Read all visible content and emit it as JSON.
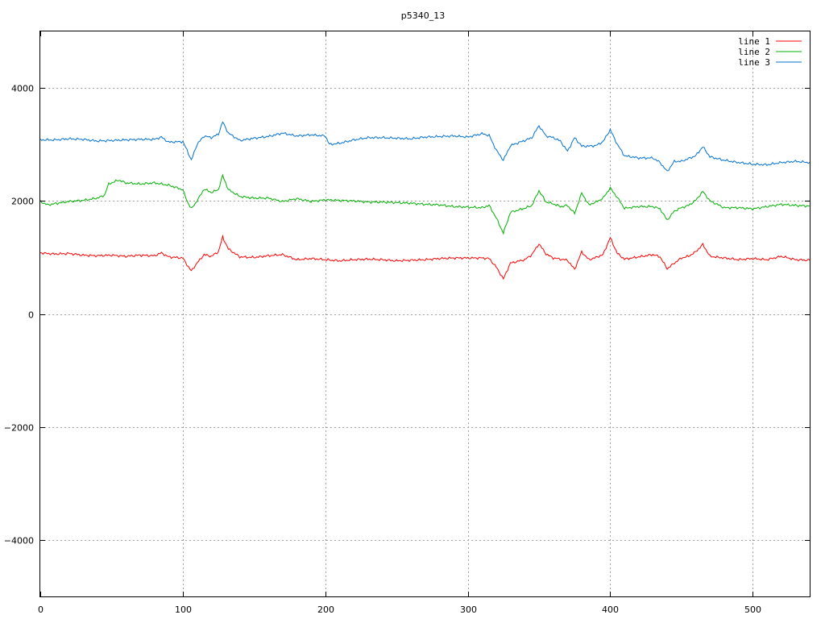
{
  "chart_data": {
    "type": "line",
    "title": "p5340_13",
    "xlabel": "",
    "ylabel": "",
    "xlim": [
      0,
      540
    ],
    "ylim": [
      -5000,
      5000
    ],
    "x_ticks": [
      0,
      100,
      200,
      300,
      400,
      500
    ],
    "y_ticks": [
      -4000,
      -2000,
      0,
      2000,
      4000
    ],
    "grid": true,
    "legend_position": "top-right",
    "series": [
      {
        "name": "line 1",
        "color": "#ff0000",
        "points": [
          [
            0,
            1080
          ],
          [
            10,
            1060
          ],
          [
            20,
            1070
          ],
          [
            30,
            1040
          ],
          [
            40,
            1030
          ],
          [
            50,
            1040
          ],
          [
            60,
            1020
          ],
          [
            70,
            1040
          ],
          [
            80,
            1030
          ],
          [
            85,
            1080
          ],
          [
            90,
            1010
          ],
          [
            100,
            990
          ],
          [
            103,
            870
          ],
          [
            106,
            760
          ],
          [
            110,
            900
          ],
          [
            115,
            1050
          ],
          [
            120,
            1020
          ],
          [
            125,
            1100
          ],
          [
            128,
            1360
          ],
          [
            132,
            1150
          ],
          [
            140,
            1010
          ],
          [
            150,
            1000
          ],
          [
            160,
            1030
          ],
          [
            170,
            1050
          ],
          [
            180,
            960
          ],
          [
            190,
            980
          ],
          [
            200,
            960
          ],
          [
            210,
            940
          ],
          [
            220,
            960
          ],
          [
            230,
            970
          ],
          [
            240,
            960
          ],
          [
            250,
            940
          ],
          [
            260,
            950
          ],
          [
            270,
            960
          ],
          [
            280,
            980
          ],
          [
            290,
            990
          ],
          [
            300,
            990
          ],
          [
            310,
            990
          ],
          [
            315,
            980
          ],
          [
            320,
            830
          ],
          [
            325,
            620
          ],
          [
            330,
            900
          ],
          [
            340,
            960
          ],
          [
            345,
            1050
          ],
          [
            350,
            1240
          ],
          [
            355,
            1060
          ],
          [
            360,
            990
          ],
          [
            365,
            970
          ],
          [
            370,
            950
          ],
          [
            375,
            790
          ],
          [
            380,
            1100
          ],
          [
            385,
            960
          ],
          [
            390,
            1000
          ],
          [
            395,
            1050
          ],
          [
            400,
            1350
          ],
          [
            405,
            1070
          ],
          [
            410,
            970
          ],
          [
            420,
            1010
          ],
          [
            430,
            1050
          ],
          [
            435,
            1010
          ],
          [
            440,
            800
          ],
          [
            445,
            900
          ],
          [
            450,
            990
          ],
          [
            455,
            1020
          ],
          [
            460,
            1100
          ],
          [
            465,
            1230
          ],
          [
            470,
            1020
          ],
          [
            480,
            990
          ],
          [
            490,
            960
          ],
          [
            500,
            980
          ],
          [
            510,
            960
          ],
          [
            520,
            1020
          ],
          [
            530,
            960
          ],
          [
            540,
            950
          ]
        ]
      },
      {
        "name": "line 2",
        "color": "#00b000",
        "points": [
          [
            0,
            1990
          ],
          [
            5,
            1930
          ],
          [
            10,
            1950
          ],
          [
            20,
            1990
          ],
          [
            30,
            2010
          ],
          [
            40,
            2050
          ],
          [
            45,
            2100
          ],
          [
            48,
            2300
          ],
          [
            55,
            2370
          ],
          [
            60,
            2320
          ],
          [
            70,
            2300
          ],
          [
            80,
            2320
          ],
          [
            90,
            2280
          ],
          [
            100,
            2200
          ],
          [
            103,
            2000
          ],
          [
            106,
            1860
          ],
          [
            110,
            2000
          ],
          [
            115,
            2210
          ],
          [
            120,
            2150
          ],
          [
            125,
            2200
          ],
          [
            128,
            2450
          ],
          [
            132,
            2200
          ],
          [
            140,
            2080
          ],
          [
            150,
            2050
          ],
          [
            160,
            2050
          ],
          [
            170,
            1990
          ],
          [
            180,
            2040
          ],
          [
            190,
            1990
          ],
          [
            200,
            2020
          ],
          [
            210,
            2010
          ],
          [
            220,
            2000
          ],
          [
            230,
            1980
          ],
          [
            240,
            1980
          ],
          [
            250,
            1970
          ],
          [
            260,
            1960
          ],
          [
            270,
            1940
          ],
          [
            280,
            1930
          ],
          [
            290,
            1900
          ],
          [
            300,
            1890
          ],
          [
            310,
            1880
          ],
          [
            315,
            1920
          ],
          [
            320,
            1700
          ],
          [
            325,
            1430
          ],
          [
            330,
            1800
          ],
          [
            340,
            1870
          ],
          [
            345,
            1920
          ],
          [
            350,
            2180
          ],
          [
            355,
            1980
          ],
          [
            360,
            1950
          ],
          [
            365,
            1900
          ],
          [
            370,
            1920
          ],
          [
            375,
            1780
          ],
          [
            380,
            2140
          ],
          [
            385,
            1930
          ],
          [
            390,
            1980
          ],
          [
            395,
            2050
          ],
          [
            400,
            2230
          ],
          [
            405,
            2060
          ],
          [
            410,
            1870
          ],
          [
            420,
            1900
          ],
          [
            430,
            1900
          ],
          [
            435,
            1860
          ],
          [
            440,
            1660
          ],
          [
            445,
            1820
          ],
          [
            450,
            1880
          ],
          [
            455,
            1920
          ],
          [
            460,
            2010
          ],
          [
            465,
            2170
          ],
          [
            470,
            2000
          ],
          [
            480,
            1880
          ],
          [
            490,
            1880
          ],
          [
            500,
            1860
          ],
          [
            510,
            1900
          ],
          [
            520,
            1940
          ],
          [
            530,
            1920
          ],
          [
            540,
            1910
          ]
        ]
      },
      {
        "name": "line 3",
        "color": "#0070d0",
        "points": [
          [
            0,
            3080
          ],
          [
            10,
            3080
          ],
          [
            20,
            3100
          ],
          [
            30,
            3090
          ],
          [
            40,
            3060
          ],
          [
            50,
            3070
          ],
          [
            60,
            3080
          ],
          [
            70,
            3090
          ],
          [
            80,
            3090
          ],
          [
            85,
            3130
          ],
          [
            90,
            3040
          ],
          [
            100,
            3050
          ],
          [
            103,
            2900
          ],
          [
            106,
            2720
          ],
          [
            110,
            3000
          ],
          [
            115,
            3150
          ],
          [
            120,
            3120
          ],
          [
            125,
            3180
          ],
          [
            128,
            3400
          ],
          [
            132,
            3200
          ],
          [
            140,
            3070
          ],
          [
            150,
            3110
          ],
          [
            160,
            3140
          ],
          [
            170,
            3200
          ],
          [
            180,
            3150
          ],
          [
            190,
            3170
          ],
          [
            200,
            3150
          ],
          [
            203,
            3000
          ],
          [
            210,
            3020
          ],
          [
            220,
            3080
          ],
          [
            230,
            3120
          ],
          [
            240,
            3120
          ],
          [
            250,
            3110
          ],
          [
            260,
            3100
          ],
          [
            270,
            3130
          ],
          [
            280,
            3140
          ],
          [
            290,
            3150
          ],
          [
            300,
            3130
          ],
          [
            310,
            3190
          ],
          [
            315,
            3160
          ],
          [
            320,
            2900
          ],
          [
            325,
            2720
          ],
          [
            330,
            2980
          ],
          [
            340,
            3070
          ],
          [
            345,
            3120
          ],
          [
            350,
            3330
          ],
          [
            355,
            3150
          ],
          [
            360,
            3120
          ],
          [
            365,
            3060
          ],
          [
            370,
            2880
          ],
          [
            375,
            3120
          ],
          [
            380,
            2970
          ],
          [
            385,
            2970
          ],
          [
            390,
            2980
          ],
          [
            395,
            3050
          ],
          [
            400,
            3260
          ],
          [
            405,
            3000
          ],
          [
            410,
            2800
          ],
          [
            420,
            2760
          ],
          [
            430,
            2760
          ],
          [
            435,
            2680
          ],
          [
            440,
            2520
          ],
          [
            445,
            2700
          ],
          [
            450,
            2700
          ],
          [
            455,
            2750
          ],
          [
            460,
            2800
          ],
          [
            465,
            2960
          ],
          [
            470,
            2780
          ],
          [
            480,
            2720
          ],
          [
            490,
            2680
          ],
          [
            500,
            2650
          ],
          [
            510,
            2640
          ],
          [
            520,
            2680
          ],
          [
            530,
            2700
          ],
          [
            540,
            2680
          ]
        ]
      }
    ]
  }
}
